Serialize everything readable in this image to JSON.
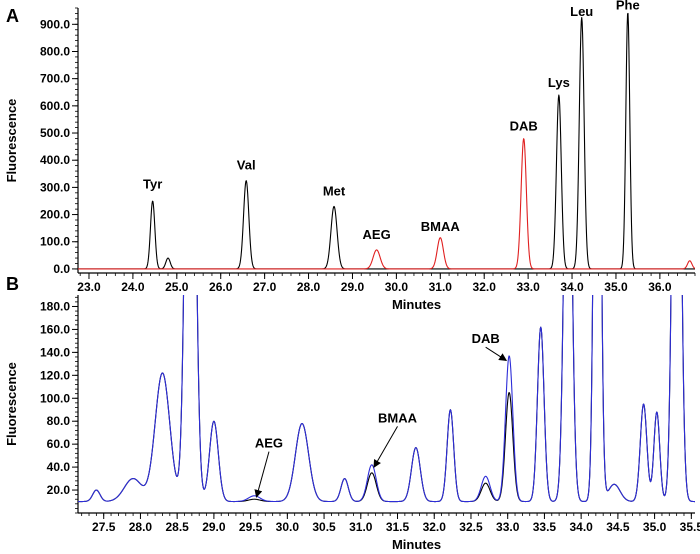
{
  "chart_data": [
    {
      "type": "line",
      "panel_label": "A",
      "xlabel": "Minutes",
      "ylabel": "Fluorescence",
      "xlim": [
        22.75,
        36.8
      ],
      "ylim": [
        -15,
        960
      ],
      "x_ticks": [
        "23.0",
        "24.0",
        "25.0",
        "26.0",
        "27.0",
        "28.0",
        "29.0",
        "30.0",
        "31.0",
        "32.0",
        "33.0",
        "34.0",
        "35.0",
        "36.0"
      ],
      "y_ticks": [
        "0.0",
        "100.0",
        "200.0",
        "300.0",
        "400.0",
        "500.0",
        "600.0",
        "700.0",
        "800.0",
        "900.0"
      ],
      "series": [
        {
          "color": "#000000",
          "peaks": [
            {
              "x": 24.45,
              "height": 250,
              "width": 0.05
            },
            {
              "x": 24.8,
              "height": 40,
              "width": 0.05
            },
            {
              "x": 26.58,
              "height": 325,
              "width": 0.06
            },
            {
              "x": 28.58,
              "height": 230,
              "width": 0.07
            },
            {
              "x": 33.7,
              "height": 640,
              "width": 0.055
            },
            {
              "x": 34.22,
              "height": 925,
              "width": 0.055
            },
            {
              "x": 35.27,
              "height": 945,
              "width": 0.045
            }
          ]
        },
        {
          "color": "#e02020",
          "peaks": [
            {
              "x": 29.55,
              "height": 70,
              "width": 0.08
            },
            {
              "x": 31.0,
              "height": 115,
              "width": 0.07
            },
            {
              "x": 32.9,
              "height": 480,
              "width": 0.06
            },
            {
              "x": 36.68,
              "height": 30,
              "width": 0.05
            }
          ]
        }
      ],
      "peak_labels": [
        {
          "text": "Tyr",
          "x": 24.45,
          "y": 295
        },
        {
          "text": "Val",
          "x": 26.58,
          "y": 365
        },
        {
          "text": "Met",
          "x": 28.58,
          "y": 270
        },
        {
          "text": "AEG",
          "x": 29.55,
          "y": 110
        },
        {
          "text": "BMAA",
          "x": 31.0,
          "y": 140
        },
        {
          "text": "DAB",
          "x": 32.9,
          "y": 510
        },
        {
          "text": "Lys",
          "x": 33.7,
          "y": 670
        },
        {
          "text": "Leu",
          "x": 34.22,
          "y": 930
        },
        {
          "text": "Phe",
          "x": 35.27,
          "y": 955
        }
      ]
    },
    {
      "type": "line",
      "panel_label": "B",
      "xlabel": "Minutes",
      "ylabel": "Fluorescence",
      "xlim": [
        27.15,
        35.55
      ],
      "ylim": [
        0,
        190
      ],
      "x_ticks": [
        "27.5",
        "28.0",
        "28.5",
        "29.0",
        "29.5",
        "30.0",
        "30.5",
        "31.0",
        "31.5",
        "32.0",
        "32.5",
        "33.0",
        "33.5",
        "34.0",
        "34.5",
        "35.0",
        "35.5"
      ],
      "y_ticks": [
        "20.0",
        "40.0",
        "60.0",
        "80.0",
        "100.0",
        "120.0",
        "140.0",
        "160.0",
        "180.0"
      ],
      "series": [
        {
          "color": "#000000",
          "baseline": 10,
          "peaks": [
            {
              "x": 27.4,
              "height": 10,
              "width": 0.05
            },
            {
              "x": 27.9,
              "height": 20,
              "width": 0.12
            },
            {
              "x": 28.3,
              "height": 112,
              "width": 0.1
            },
            {
              "x": 28.68,
              "height": 600,
              "width": 0.06
            },
            {
              "x": 29.0,
              "height": 70,
              "width": 0.06
            },
            {
              "x": 29.55,
              "height": 2,
              "width": 0.08
            },
            {
              "x": 30.2,
              "height": 68,
              "width": 0.09
            },
            {
              "x": 30.78,
              "height": 20,
              "width": 0.05
            },
            {
              "x": 31.15,
              "height": 25,
              "width": 0.06
            },
            {
              "x": 31.75,
              "height": 47,
              "width": 0.06
            },
            {
              "x": 32.22,
              "height": 80,
              "width": 0.045
            },
            {
              "x": 32.7,
              "height": 16,
              "width": 0.06
            },
            {
              "x": 33.02,
              "height": 95,
              "width": 0.05
            },
            {
              "x": 33.45,
              "height": 152,
              "width": 0.045
            },
            {
              "x": 33.82,
              "height": 420,
              "width": 0.05
            },
            {
              "x": 34.22,
              "height": 650,
              "width": 0.04
            },
            {
              "x": 34.45,
              "height": 15,
              "width": 0.08
            },
            {
              "x": 34.85,
              "height": 85,
              "width": 0.045
            },
            {
              "x": 35.03,
              "height": 78,
              "width": 0.04
            },
            {
              "x": 35.3,
              "height": 600,
              "width": 0.05
            }
          ]
        },
        {
          "color": "#2d2dd8",
          "baseline": 10,
          "peaks": [
            {
              "x": 27.4,
              "height": 10,
              "width": 0.05
            },
            {
              "x": 27.9,
              "height": 20,
              "width": 0.12
            },
            {
              "x": 28.3,
              "height": 112,
              "width": 0.1
            },
            {
              "x": 28.68,
              "height": 600,
              "width": 0.06
            },
            {
              "x": 29.0,
              "height": 70,
              "width": 0.06
            },
            {
              "x": 29.55,
              "height": 5,
              "width": 0.08
            },
            {
              "x": 30.2,
              "height": 68,
              "width": 0.09
            },
            {
              "x": 30.78,
              "height": 20,
              "width": 0.05
            },
            {
              "x": 31.15,
              "height": 32,
              "width": 0.06
            },
            {
              "x": 31.75,
              "height": 47,
              "width": 0.06
            },
            {
              "x": 32.22,
              "height": 80,
              "width": 0.045
            },
            {
              "x": 32.7,
              "height": 22,
              "width": 0.06
            },
            {
              "x": 33.02,
              "height": 127,
              "width": 0.05
            },
            {
              "x": 33.45,
              "height": 152,
              "width": 0.045
            },
            {
              "x": 33.82,
              "height": 420,
              "width": 0.05
            },
            {
              "x": 34.22,
              "height": 650,
              "width": 0.04
            },
            {
              "x": 34.45,
              "height": 15,
              "width": 0.08
            },
            {
              "x": 34.85,
              "height": 85,
              "width": 0.045
            },
            {
              "x": 35.03,
              "height": 78,
              "width": 0.04
            },
            {
              "x": 35.3,
              "height": 600,
              "width": 0.05
            }
          ]
        }
      ],
      "peak_labels": [
        {
          "text": "AEG",
          "x": 29.75,
          "y": 57,
          "arrow_to": [
            29.58,
            14
          ]
        },
        {
          "text": "BMAA",
          "x": 31.5,
          "y": 79,
          "arrow_to": [
            31.18,
            40
          ]
        },
        {
          "text": "DAB",
          "x": 32.7,
          "y": 148,
          "arrow_to": [
            32.98,
            133
          ]
        }
      ]
    }
  ]
}
